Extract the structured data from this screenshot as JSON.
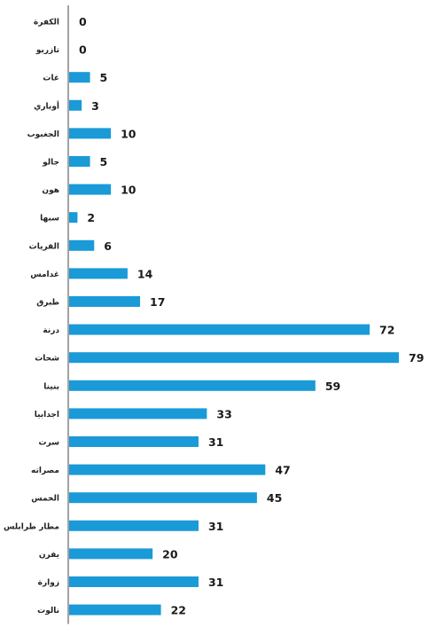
{
  "chart_data": {
    "type": "bar",
    "orientation": "horizontal",
    "categories": [
      "الكفرة",
      "تازربو",
      "غات",
      "أوباري",
      "الجغبوب",
      "جالو",
      "هون",
      "سبها",
      "القريات",
      "غدامس",
      "طبرق",
      "درنة",
      "شحات",
      "بنينا",
      "اجدابيا",
      "سرت",
      "مصراته",
      "الخمس",
      "مطار طرابلس",
      "يفرن",
      "زوارة",
      "نالوت"
    ],
    "values": [
      0,
      0,
      5,
      3,
      10,
      5,
      10,
      2,
      6,
      14,
      17,
      72,
      79,
      59,
      33,
      31,
      47,
      45,
      31,
      20,
      31,
      22
    ],
    "bar_color": "#1a9ad7",
    "xlim": [
      0,
      79
    ],
    "grid": false,
    "legend": "none",
    "data_labels": true
  }
}
